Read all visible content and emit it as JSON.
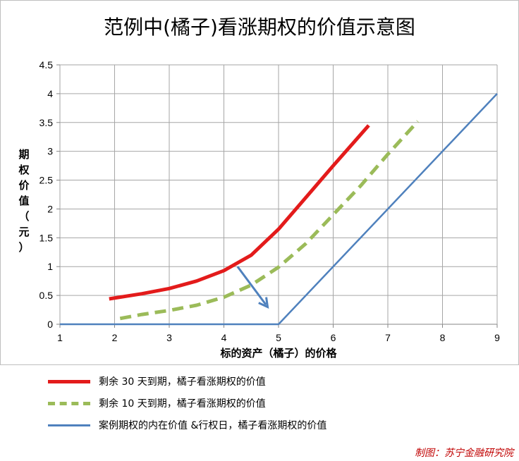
{
  "chart_data": {
    "type": "line",
    "title": "范例中(橘子)看涨期权的价值示意图",
    "xlabel": "标的资产（橘子）的价格",
    "ylabel": "期权价值（元）",
    "xlim": [
      1,
      9
    ],
    "ylim": [
      0,
      4.5
    ],
    "x_ticks": [
      "1",
      "2",
      "3",
      "4",
      "5",
      "6",
      "7",
      "8",
      "9"
    ],
    "y_ticks": [
      "0",
      "0.5",
      "1",
      "1.5",
      "2",
      "2.5",
      "3",
      "3.5",
      "4",
      "4.5"
    ],
    "grid": true,
    "legend_position": "bottom",
    "series": [
      {
        "name": "剩余 30 天到期，橘子看涨期权的价值",
        "color": "#e31b1b",
        "style": "solid",
        "x": [
          1.9,
          2.5,
          3.0,
          3.5,
          4.0,
          4.5,
          5.0,
          5.5,
          6.0,
          6.65
        ],
        "y": [
          0.44,
          0.53,
          0.62,
          0.75,
          0.93,
          1.2,
          1.65,
          2.2,
          2.75,
          3.45
        ]
      },
      {
        "name": "剩余 10 天到期，橘子看涨期权的价值",
        "color": "#9bbb59",
        "style": "dashed",
        "x": [
          2.1,
          2.5,
          3.0,
          3.5,
          4.0,
          4.5,
          5.0,
          5.5,
          6.0,
          6.5,
          7.0,
          7.55
        ],
        "y": [
          0.1,
          0.17,
          0.24,
          0.33,
          0.47,
          0.68,
          0.99,
          1.4,
          1.9,
          2.4,
          2.95,
          3.52
        ]
      },
      {
        "name": "案例期权的内在价值   &行权日，橘子看涨期权的价值",
        "color": "#4f81bd",
        "style": "solid",
        "x": [
          1,
          5,
          9
        ],
        "y": [
          0,
          0,
          4
        ]
      }
    ],
    "annotations": [
      {
        "type": "arrow",
        "from": [
          4.25,
          1.0
        ],
        "to": [
          4.8,
          0.3
        ],
        "color": "#4f81bd"
      }
    ]
  },
  "credit": "制图：苏宁金融研究院",
  "ylabel_chars": [
    "期",
    "权",
    "价",
    "值",
    "（",
    "元",
    "）"
  ]
}
